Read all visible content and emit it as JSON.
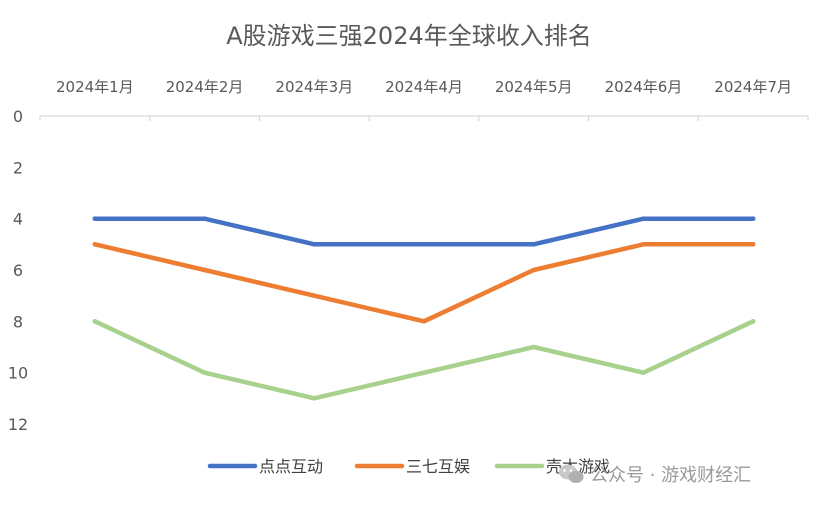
{
  "chart_data": {
    "type": "line",
    "title": "A股游戏三强2024年全球收入排名",
    "categories": [
      "2024年1月",
      "2024年2月",
      "2024年3月",
      "2024年4月",
      "2024年5月",
      "2024年6月",
      "2024年7月"
    ],
    "y_reversed": true,
    "ylim": [
      0,
      12
    ],
    "yticks": [
      "0",
      "2",
      "4",
      "6",
      "8",
      "10",
      "12"
    ],
    "x_axis_position": "top",
    "grid": false,
    "legend_position": "bottom",
    "series": [
      {
        "name": "点点互动",
        "color": "#4472C4",
        "values": [
          4,
          4,
          5,
          5,
          5,
          4,
          4
        ]
      },
      {
        "name": "三七互娱",
        "color": "#ED7D31",
        "values": [
          5,
          6,
          7,
          8,
          6,
          5,
          5
        ]
      },
      {
        "name": "壳木游戏",
        "color": "#A9D18E",
        "values": [
          8,
          10,
          11,
          10,
          9,
          10,
          8
        ]
      }
    ]
  },
  "watermark": {
    "text": "公众号 · 游戏财经汇",
    "icon": "wechat-icon"
  }
}
